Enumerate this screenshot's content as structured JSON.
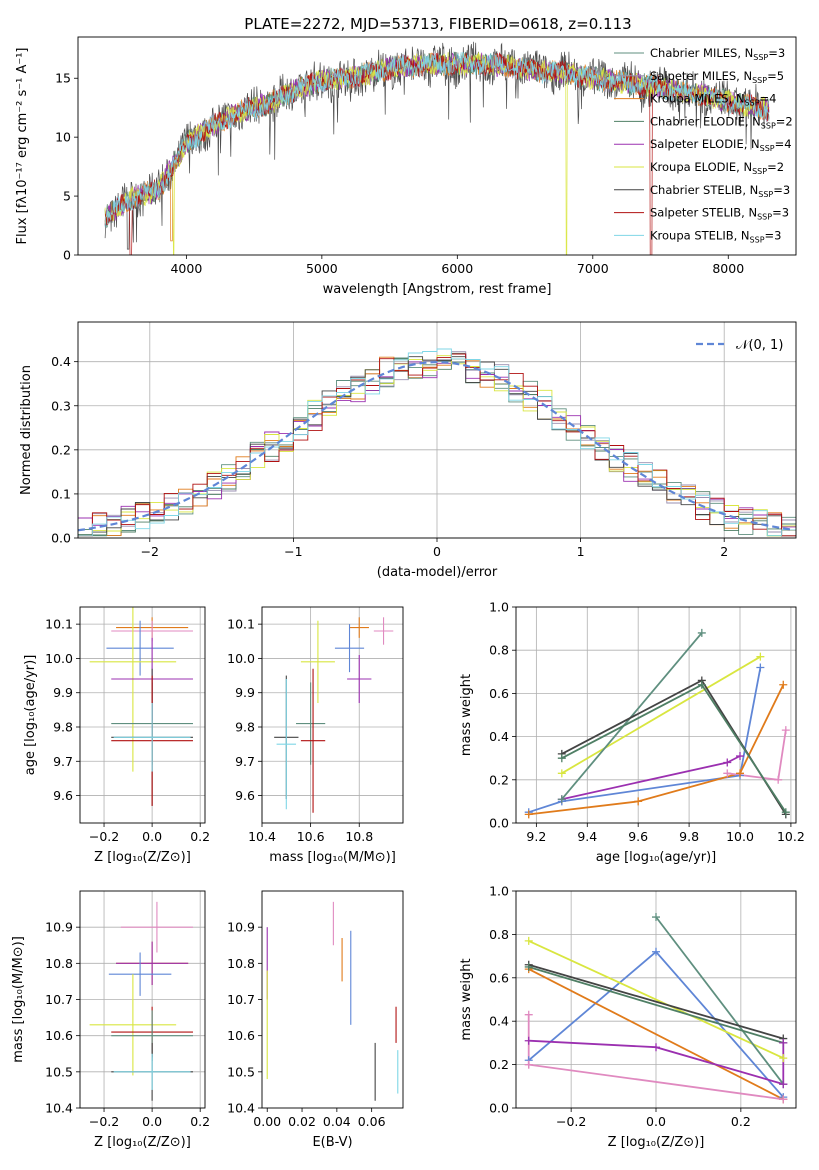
{
  "figure": {
    "title": "PLATE=2272, MJD=53713, FIBERID=0618, z=0.113"
  },
  "chart_data": [
    {
      "type": "line",
      "id": "spectrum",
      "xlabel": "wavelength [Angstrom, rest frame]",
      "ylabel": "Flux [fλ10⁻¹⁷ erg cm⁻² s⁻¹ A⁻¹]",
      "xlim": [
        3200,
        8500
      ],
      "ylim": [
        0,
        18.5
      ],
      "xticks": [
        4000,
        5000,
        6000,
        7000,
        8000
      ],
      "yticks": [
        0,
        5,
        10,
        15
      ],
      "grid": false,
      "legend": "top-right",
      "x": [
        3400,
        3600,
        3800,
        4000,
        4200,
        4400,
        4600,
        4800,
        5000,
        5200,
        5400,
        5600,
        5800,
        6000,
        6200,
        6400,
        6600,
        6800,
        7000,
        7200,
        7400,
        7600,
        7800,
        8000,
        8200,
        8300
      ],
      "y": [
        3.2,
        4.8,
        5.6,
        9.5,
        11.0,
        12.2,
        12.8,
        14.0,
        14.8,
        15.0,
        15.6,
        16.0,
        16.2,
        16.2,
        16.2,
        16.0,
        15.6,
        15.5,
        15.0,
        14.7,
        14.4,
        14.0,
        13.6,
        13.0,
        12.6,
        12.3
      ],
      "series": [
        {
          "name": "Chabrier MILES, N",
          "nssp": "=3",
          "color": "#5f8f7f"
        },
        {
          "name": "Salpeter MILES, N",
          "nssp": "=5",
          "color": "#9a8fb0"
        },
        {
          "name": "Kroupa MILES, N",
          "nssp": "=4",
          "color": "#e07b1b"
        },
        {
          "name": "Chabrier ELODIE, N",
          "nssp": "=2",
          "color": "#4f7f65"
        },
        {
          "name": "Salpeter ELODIE, N",
          "nssp": "=4",
          "color": "#9b30b0"
        },
        {
          "name": "Kroupa ELODIE, N",
          "nssp": "=2",
          "color": "#d9e640"
        },
        {
          "name": "Chabrier STELIB, N",
          "nssp": "=3",
          "color": "#444444"
        },
        {
          "name": "Salpeter STELIB, N",
          "nssp": "=3",
          "color": "#b01010"
        },
        {
          "name": "Kroupa STELIB, N",
          "nssp": "=3",
          "color": "#7fd6e6"
        }
      ]
    },
    {
      "type": "step",
      "id": "residuals",
      "xlabel": "(data-model)/error",
      "ylabel": "Normed distribution",
      "xlim": [
        -2.5,
        2.5
      ],
      "ylim": [
        0,
        0.49
      ],
      "xticks": [
        -2,
        -1,
        0,
        1,
        2
      ],
      "yticks": [
        0.0,
        0.1,
        0.2,
        0.3,
        0.4
      ],
      "grid": true,
      "legend": "top-right",
      "legend_label": "𝒩(0, 1)",
      "bin_width": 0.1
    },
    {
      "type": "errorbar",
      "id": "age-vs-Z",
      "xlabel": "Z [log₁₀(Z/Z⊙)]",
      "ylabel": "age  [log₁₀(age/yr)]",
      "xlim": [
        -0.3,
        0.22
      ],
      "ylim": [
        9.52,
        10.15
      ],
      "xticks": [
        -0.2,
        0.0,
        0.2
      ],
      "yticks": [
        9.6,
        9.7,
        9.8,
        9.9,
        10.0,
        10.1
      ],
      "grid": true,
      "points": [
        {
          "x": 0.0,
          "y": 10.09,
          "xe": 0.15,
          "ye": 0.03,
          "color": "#e07b1b"
        },
        {
          "x": 0.0,
          "y": 10.08,
          "xe": 0.17,
          "ye": 0.03,
          "color": "#e08ac0"
        },
        {
          "x": -0.05,
          "y": 10.03,
          "xe": 0.14,
          "ye": 0.08,
          "color": "#5f86d6"
        },
        {
          "x": -0.08,
          "y": 9.99,
          "xe": 0.18,
          "ye": 0.32,
          "color": "#d9e640"
        },
        {
          "x": 0.0,
          "y": 9.94,
          "xe": 0.17,
          "ye": 0.12,
          "color": "#9b30b0"
        },
        {
          "x": 0.0,
          "y": 9.81,
          "xe": 0.17,
          "ye": 0.12,
          "color": "#5f8f7f"
        },
        {
          "x": 0.0,
          "y": 9.77,
          "xe": 0.17,
          "ye": 0.2,
          "color": "#444444"
        },
        {
          "x": 0.0,
          "y": 9.76,
          "xe": 0.17,
          "ye": 0.19,
          "color": "#b01010"
        },
        {
          "x": 0.0,
          "y": 9.77,
          "xe": 0.16,
          "ye": 0.1,
          "color": "#7fd6e6"
        }
      ]
    },
    {
      "type": "errorbar",
      "id": "age-vs-mass",
      "xlabel": "mass [log₁₀(M/M⊙)]",
      "xlim": [
        10.4,
        10.98
      ],
      "ylim": [
        9.52,
        10.15
      ],
      "xticks": [
        10.4,
        10.6,
        10.8
      ],
      "yticks": [
        9.6,
        9.7,
        9.8,
        9.9,
        10.0,
        10.1
      ],
      "grid": true,
      "points": [
        {
          "x": 10.8,
          "y": 10.09,
          "xe": 0.04,
          "ye": 0.03,
          "color": "#e07b1b"
        },
        {
          "x": 10.9,
          "y": 10.08,
          "xe": 0.04,
          "ye": 0.04,
          "color": "#e08ac0"
        },
        {
          "x": 10.76,
          "y": 10.03,
          "xe": 0.06,
          "ye": 0.07,
          "color": "#5f86d6"
        },
        {
          "x": 10.63,
          "y": 9.99,
          "xe": 0.07,
          "ye": 0.12,
          "color": "#d9e640"
        },
        {
          "x": 10.8,
          "y": 9.94,
          "xe": 0.05,
          "ye": 0.07,
          "color": "#9b30b0"
        },
        {
          "x": 10.6,
          "y": 9.81,
          "xe": 0.06,
          "ye": 0.12,
          "color": "#5f8f7f"
        },
        {
          "x": 10.5,
          "y": 9.77,
          "xe": 0.05,
          "ye": 0.18,
          "color": "#444444"
        },
        {
          "x": 10.61,
          "y": 9.76,
          "xe": 0.05,
          "ye": 0.21,
          "color": "#b01010"
        },
        {
          "x": 10.5,
          "y": 9.75,
          "xe": 0.04,
          "ye": 0.19,
          "color": "#7fd6e6"
        }
      ]
    },
    {
      "type": "line",
      "id": "massweight-vs-age",
      "xlabel": "age  [log₁₀(age/yr)]",
      "ylabel": "mass weight",
      "xlim": [
        9.12,
        10.22
      ],
      "ylim": [
        0,
        1.0
      ],
      "xticks": [
        9.2,
        9.4,
        9.6,
        9.8,
        10.0,
        10.2
      ],
      "yticks": [
        0.0,
        0.2,
        0.4,
        0.6,
        0.8,
        1.0
      ],
      "grid": true,
      "series": [
        {
          "color": "#5f86d6",
          "x": [
            9.17,
            9.3,
            10.0,
            10.08
          ],
          "y": [
            0.05,
            0.1,
            0.22,
            0.72
          ]
        },
        {
          "color": "#e07b1b",
          "x": [
            9.17,
            9.6,
            10.0,
            10.17
          ],
          "y": [
            0.04,
            0.1,
            0.23,
            0.64
          ]
        },
        {
          "color": "#9b30b0",
          "x": [
            9.3,
            9.95,
            10.0
          ],
          "y": [
            0.11,
            0.28,
            0.31
          ]
        },
        {
          "color": "#e08ac0",
          "x": [
            9.95,
            10.15,
            10.18
          ],
          "y": [
            0.23,
            0.2,
            0.43
          ]
        },
        {
          "color": "#d9e640",
          "x": [
            9.3,
            10.08
          ],
          "y": [
            0.23,
            0.77
          ]
        },
        {
          "color": "#5f8f7f",
          "x": [
            9.3,
            9.85
          ],
          "y": [
            0.11,
            0.88
          ]
        },
        {
          "color": "#444444",
          "x": [
            9.3,
            9.85,
            10.18
          ],
          "y": [
            0.32,
            0.66,
            0.04
          ]
        },
        {
          "color": "#4f7f65",
          "x": [
            9.3,
            9.85,
            10.18
          ],
          "y": [
            0.3,
            0.64,
            0.05
          ]
        }
      ]
    },
    {
      "type": "errorbar",
      "id": "mass-vs-Z",
      "xlabel": "Z [log₁₀(Z/Z⊙)]",
      "ylabel": "mass [log₁₀(M/M⊙)]",
      "xlim": [
        -0.3,
        0.22
      ],
      "ylim": [
        10.4,
        11.0
      ],
      "xticks": [
        -0.2,
        0.0,
        0.2
      ],
      "yticks": [
        10.4,
        10.5,
        10.6,
        10.7,
        10.8,
        10.9
      ],
      "grid": true,
      "points": [
        {
          "x": 0.02,
          "y": 10.9,
          "xe": 0.15,
          "ye": 0.07,
          "color": "#e08ac0"
        },
        {
          "x": 0.0,
          "y": 10.8,
          "xe": 0.15,
          "ye": 0.06,
          "color": "#e07b1b"
        },
        {
          "x": 0.0,
          "y": 10.8,
          "xe": 0.15,
          "ye": 0.06,
          "color": "#9b30b0"
        },
        {
          "x": -0.05,
          "y": 10.77,
          "xe": 0.13,
          "ye": 0.06,
          "color": "#5f86d6"
        },
        {
          "x": -0.08,
          "y": 10.63,
          "xe": 0.18,
          "ye": 0.14,
          "color": "#d9e640"
        },
        {
          "x": 0.0,
          "y": 10.61,
          "xe": 0.17,
          "ye": 0.07,
          "color": "#b01010"
        },
        {
          "x": 0.0,
          "y": 10.6,
          "xe": 0.17,
          "ye": 0.07,
          "color": "#5f8f7f"
        },
        {
          "x": 0.0,
          "y": 10.5,
          "xe": 0.17,
          "ye": 0.08,
          "color": "#444444"
        },
        {
          "x": 0.0,
          "y": 10.5,
          "xe": 0.16,
          "ye": 0.05,
          "color": "#7fd6e6"
        }
      ]
    },
    {
      "type": "errorbar",
      "id": "mass-vs-ebv",
      "xlabel": "E(B-V)",
      "xlim": [
        -0.003,
        0.078
      ],
      "ylim": [
        10.4,
        11.0
      ],
      "xticks": [
        0.0,
        0.02,
        0.04,
        0.06
      ],
      "yticks": [
        10.4,
        10.5,
        10.6,
        10.7,
        10.8,
        10.9
      ],
      "grid": false,
      "points": [
        {
          "x": 0.0,
          "y": 10.8,
          "ye": 0.1,
          "color": "#9b30b0"
        },
        {
          "x": 0.0,
          "y": 10.63,
          "ye": 0.15,
          "color": "#d9e640"
        },
        {
          "x": 0.038,
          "y": 10.91,
          "ye": 0.06,
          "color": "#e08ac0"
        },
        {
          "x": 0.043,
          "y": 10.81,
          "ye": 0.06,
          "color": "#e07b1b"
        },
        {
          "x": 0.048,
          "y": 10.76,
          "ye": 0.13,
          "color": "#5f86d6"
        },
        {
          "x": 0.062,
          "y": 10.5,
          "ye": 0.08,
          "color": "#444444"
        },
        {
          "x": 0.074,
          "y": 10.63,
          "ye": 0.05,
          "color": "#b01010"
        },
        {
          "x": 0.075,
          "y": 10.5,
          "ye": 0.06,
          "color": "#7fd6e6"
        }
      ]
    },
    {
      "type": "line",
      "id": "massweight-vs-Z",
      "xlabel": "Z [log₁₀(Z/Z⊙)]",
      "ylabel": "mass weight",
      "xlim": [
        -0.33,
        0.33
      ],
      "ylim": [
        0,
        1.0
      ],
      "xticks": [
        -0.2,
        0.0,
        0.2
      ],
      "yticks": [
        0.0,
        0.2,
        0.4,
        0.6,
        0.8,
        1.0
      ],
      "grid": true,
      "series": [
        {
          "color": "#5f86d6",
          "x": [
            -0.3,
            0.0,
            0.3
          ],
          "y": [
            0.22,
            0.72,
            0.05
          ]
        },
        {
          "color": "#e07b1b",
          "x": [
            -0.3,
            0.3
          ],
          "y": [
            0.64,
            0.04
          ]
        },
        {
          "color": "#9b30b0",
          "x": [
            -0.3,
            0.0,
            0.3
          ],
          "y": [
            0.31,
            0.28,
            0.11
          ]
        },
        {
          "color": "#e08ac0",
          "x": [
            -0.3,
            0.3
          ],
          "y": [
            0.2,
            0.04
          ]
        },
        {
          "color": "#d9e640",
          "x": [
            -0.3,
            0.3
          ],
          "y": [
            0.77,
            0.23
          ]
        },
        {
          "color": "#5f8f7f",
          "x": [
            0.0,
            0.3
          ],
          "y": [
            0.88,
            0.11
          ]
        },
        {
          "color": "#444444",
          "x": [
            -0.3,
            0.3
          ],
          "y": [
            0.66,
            0.32
          ]
        },
        {
          "color": "#4f7f65",
          "x": [
            -0.3,
            0.3
          ],
          "y": [
            0.65,
            0.3
          ]
        },
        {
          "color": "#e08ac0",
          "x": [
            -0.3,
            -0.3
          ],
          "y": [
            0.43,
            0.2
          ]
        },
        {
          "color": "#9b30b0",
          "x": [
            0.3,
            0.3
          ],
          "y": [
            0.11,
            0.3
          ]
        }
      ]
    }
  ]
}
